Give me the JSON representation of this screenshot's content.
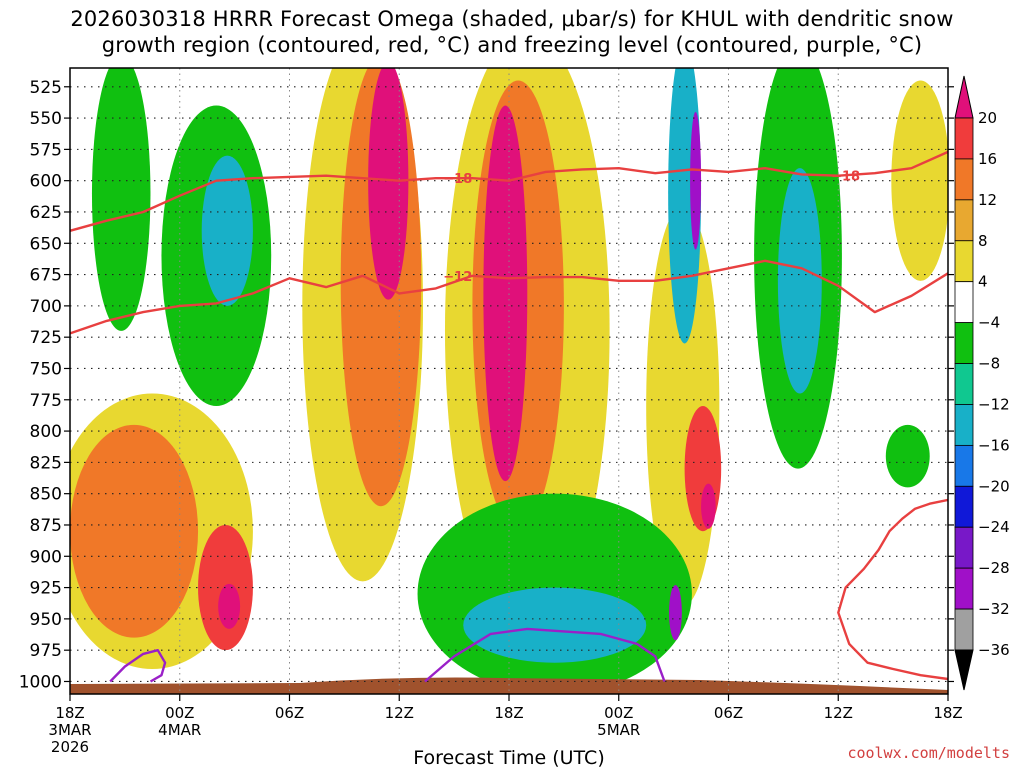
{
  "chart_data": {
    "type": "heatmap",
    "title_line1": "2026030318 HRRR Forecast Omega (shaded, μbar/s) for KHUL with dendritic snow",
    "title_line2": "growth region (contoured, red, °C) and freezing level (contoured, purple, °C)",
    "xlabel": "Forecast Time (UTC)",
    "ylabel": "",
    "credit": "coolwx.com/modelts",
    "y_ticks": [
      "525",
      "550",
      "575",
      "600",
      "625",
      "650",
      "675",
      "700",
      "725",
      "750",
      "775",
      "800",
      "825",
      "850",
      "875",
      "900",
      "925",
      "950",
      "975",
      "1000"
    ],
    "x_ticks": [
      {
        "hour": 0,
        "label": "18Z",
        "sub1": "3MAR",
        "sub2": "2026"
      },
      {
        "hour": 6,
        "label": "00Z",
        "sub1": "4MAR",
        "sub2": ""
      },
      {
        "hour": 12,
        "label": "06Z",
        "sub1": "",
        "sub2": ""
      },
      {
        "hour": 18,
        "label": "12Z",
        "sub1": "",
        "sub2": ""
      },
      {
        "hour": 24,
        "label": "18Z",
        "sub1": "",
        "sub2": ""
      },
      {
        "hour": 30,
        "label": "00Z",
        "sub1": "5MAR",
        "sub2": ""
      },
      {
        "hour": 36,
        "label": "06Z",
        "sub1": "",
        "sub2": ""
      },
      {
        "hour": 42,
        "label": "12Z",
        "sub1": "",
        "sub2": ""
      },
      {
        "hour": 48,
        "label": "18Z",
        "sub1": "",
        "sub2": ""
      }
    ],
    "y_range": [
      510,
      1010
    ],
    "x_range": [
      0,
      48
    ],
    "colorbar": {
      "labels": [
        "20",
        "16",
        "12",
        "8",
        "4",
        "−4",
        "−8",
        "−12",
        "−16",
        "−20",
        "−24",
        "−28",
        "−32",
        "−36"
      ],
      "colors": [
        "#e0107a",
        "#f03c3c",
        "#f07828",
        "#e8a830",
        "#e8d830",
        "#ffffff",
        "#10c010",
        "#10c890",
        "#18b0c8",
        "#1878e8",
        "#1018d8",
        "#7818c8",
        "#a010c8",
        "#a0a0a0",
        "#000000"
      ],
      "units": "μbar/s"
    },
    "regions": [
      {
        "name": "green-left-upper",
        "level": -4,
        "x": 2.8,
        "p": 610,
        "rx": 1.6,
        "rp": 110
      },
      {
        "name": "green-sw",
        "level": -4,
        "x": 8.0,
        "p": 660,
        "rx": 3.0,
        "rp": 120
      },
      {
        "name": "teal-sw",
        "level": -12,
        "x": 8.6,
        "p": 640,
        "rx": 1.4,
        "rp": 60
      },
      {
        "name": "yellow-low-left",
        "level": 4,
        "x": 4.5,
        "p": 880,
        "rx": 5.5,
        "rp": 110
      },
      {
        "name": "orange-low-left",
        "level": 12,
        "x": 3.5,
        "p": 880,
        "rx": 3.5,
        "rp": 85
      },
      {
        "name": "red-low-left",
        "level": 16,
        "x": 8.5,
        "p": 925,
        "rx": 1.5,
        "rp": 50
      },
      {
        "name": "pink-low-left",
        "level": 20,
        "x": 8.7,
        "p": 940,
        "rx": 0.6,
        "rp": 18
      },
      {
        "name": "yellow-tower-a",
        "level": 4,
        "x": 16.0,
        "p": 700,
        "rx": 3.3,
        "rp": 220
      },
      {
        "name": "orange-tower-a",
        "level": 12,
        "x": 17.0,
        "p": 680,
        "rx": 2.2,
        "rp": 180
      },
      {
        "name": "pink-tower-a",
        "level": 20,
        "x": 17.4,
        "p": 600,
        "rx": 1.1,
        "rp": 95
      },
      {
        "name": "yellow-tower-b",
        "level": 4,
        "x": 25.0,
        "p": 720,
        "rx": 4.5,
        "rp": 240
      },
      {
        "name": "orange-tower-b",
        "level": 12,
        "x": 24.5,
        "p": 700,
        "rx": 2.5,
        "rp": 180
      },
      {
        "name": "pink-tower-b",
        "level": 20,
        "x": 23.8,
        "p": 690,
        "rx": 1.2,
        "rp": 150
      },
      {
        "name": "yellow-tower-c",
        "level": 4,
        "x": 33.5,
        "p": 780,
        "rx": 2.0,
        "rp": 160
      },
      {
        "name": "red-tower-c",
        "level": 16,
        "x": 34.6,
        "p": 830,
        "rx": 1.0,
        "rp": 50
      },
      {
        "name": "pink-tower-c",
        "level": 20,
        "x": 34.9,
        "p": 860,
        "rx": 0.4,
        "rp": 18
      },
      {
        "name": "teal-column-c",
        "level": -12,
        "x": 33.6,
        "p": 610,
        "rx": 0.9,
        "rp": 120
      },
      {
        "name": "purple-column-c",
        "level": -28,
        "x": 34.2,
        "p": 600,
        "rx": 0.3,
        "rp": 55
      },
      {
        "name": "green-mid-right",
        "level": -4,
        "x": 39.8,
        "p": 660,
        "rx": 2.4,
        "rp": 170
      },
      {
        "name": "teal-mid-right",
        "level": -12,
        "x": 39.9,
        "p": 680,
        "rx": 1.2,
        "rp": 90
      },
      {
        "name": "green-low-band",
        "level": -4,
        "x": 26.5,
        "p": 930,
        "rx": 7.5,
        "rp": 80
      },
      {
        "name": "teal-low-band",
        "level": -12,
        "x": 26.5,
        "p": 955,
        "rx": 5.0,
        "rp": 30
      },
      {
        "name": "purple-low-spot",
        "level": -28,
        "x": 33.1,
        "p": 945,
        "rx": 0.35,
        "rp": 22
      },
      {
        "name": "yellow-upper-right",
        "level": 4,
        "x": 46.5,
        "p": 600,
        "rx": 1.6,
        "rp": 80
      },
      {
        "name": "green-far-right",
        "level": -4,
        "x": 45.8,
        "p": 820,
        "rx": 1.2,
        "rp": 25
      }
    ],
    "contours": [
      {
        "name": "dgz-minus18",
        "label": "−18",
        "label_x": 21.2,
        "label_p": 598,
        "color": "#e84040",
        "x": [
          0,
          2,
          4,
          6,
          8,
          10,
          12,
          14,
          16,
          18,
          20,
          22,
          24,
          26,
          28,
          30,
          32,
          34,
          36,
          38,
          40,
          42,
          44,
          46,
          48
        ],
        "p": [
          640,
          632,
          625,
          612,
          600,
          598,
          597,
          596,
          598,
          600,
          598,
          598,
          600,
          593,
          591,
          590,
          594,
          591,
          593,
          590,
          595,
          596,
          594,
          590,
          577
        ]
      },
      {
        "name": "dgz-minus12",
        "label": "−12",
        "label_x": 21.2,
        "label_p": 676,
        "color": "#e84040",
        "x": [
          0,
          2,
          4,
          6,
          8,
          10,
          12,
          14,
          16,
          18,
          20,
          22,
          24,
          26,
          28,
          30,
          32,
          34,
          36,
          38,
          40,
          42,
          44,
          46,
          48
        ],
        "p": [
          722,
          712,
          705,
          700,
          698,
          690,
          678,
          685,
          676,
          690,
          686,
          676,
          678,
          677,
          677,
          680,
          680,
          676,
          670,
          664,
          670,
          684,
          705,
          692,
          674
        ]
      },
      {
        "name": "freezing-level-left",
        "label": "",
        "label_x": 0,
        "label_p": 0,
        "color": "#9a20c8",
        "x": [
          2.2,
          3.0,
          4.0,
          4.8,
          5.2,
          5.0,
          4.4
        ],
        "p": [
          1000,
          988,
          978,
          975,
          985,
          995,
          1000
        ]
      },
      {
        "name": "freezing-level-right",
        "label": "",
        "label_x": 0,
        "label_p": 0,
        "color": "#9a20c8",
        "x": [
          19.4,
          21.0,
          23.0,
          25.0,
          27.0,
          29.0,
          31.0,
          32.0,
          32.5
        ],
        "p": [
          1000,
          980,
          962,
          958,
          960,
          962,
          970,
          980,
          1000
        ]
      },
      {
        "name": "dgz-low-right",
        "label": "",
        "label_x": 0,
        "label_p": 0,
        "color": "#e84040",
        "x": [
          48,
          47.0,
          46.2,
          45.5,
          44.8,
          44.2,
          43.4,
          42.4,
          42.0,
          42.6,
          43.6,
          45.0,
          46.5,
          48
        ],
        "p": [
          855,
          858,
          862,
          870,
          880,
          895,
          910,
          925,
          945,
          970,
          985,
          990,
          995,
          998
        ]
      }
    ],
    "terrain_color": "#a0522d"
  }
}
